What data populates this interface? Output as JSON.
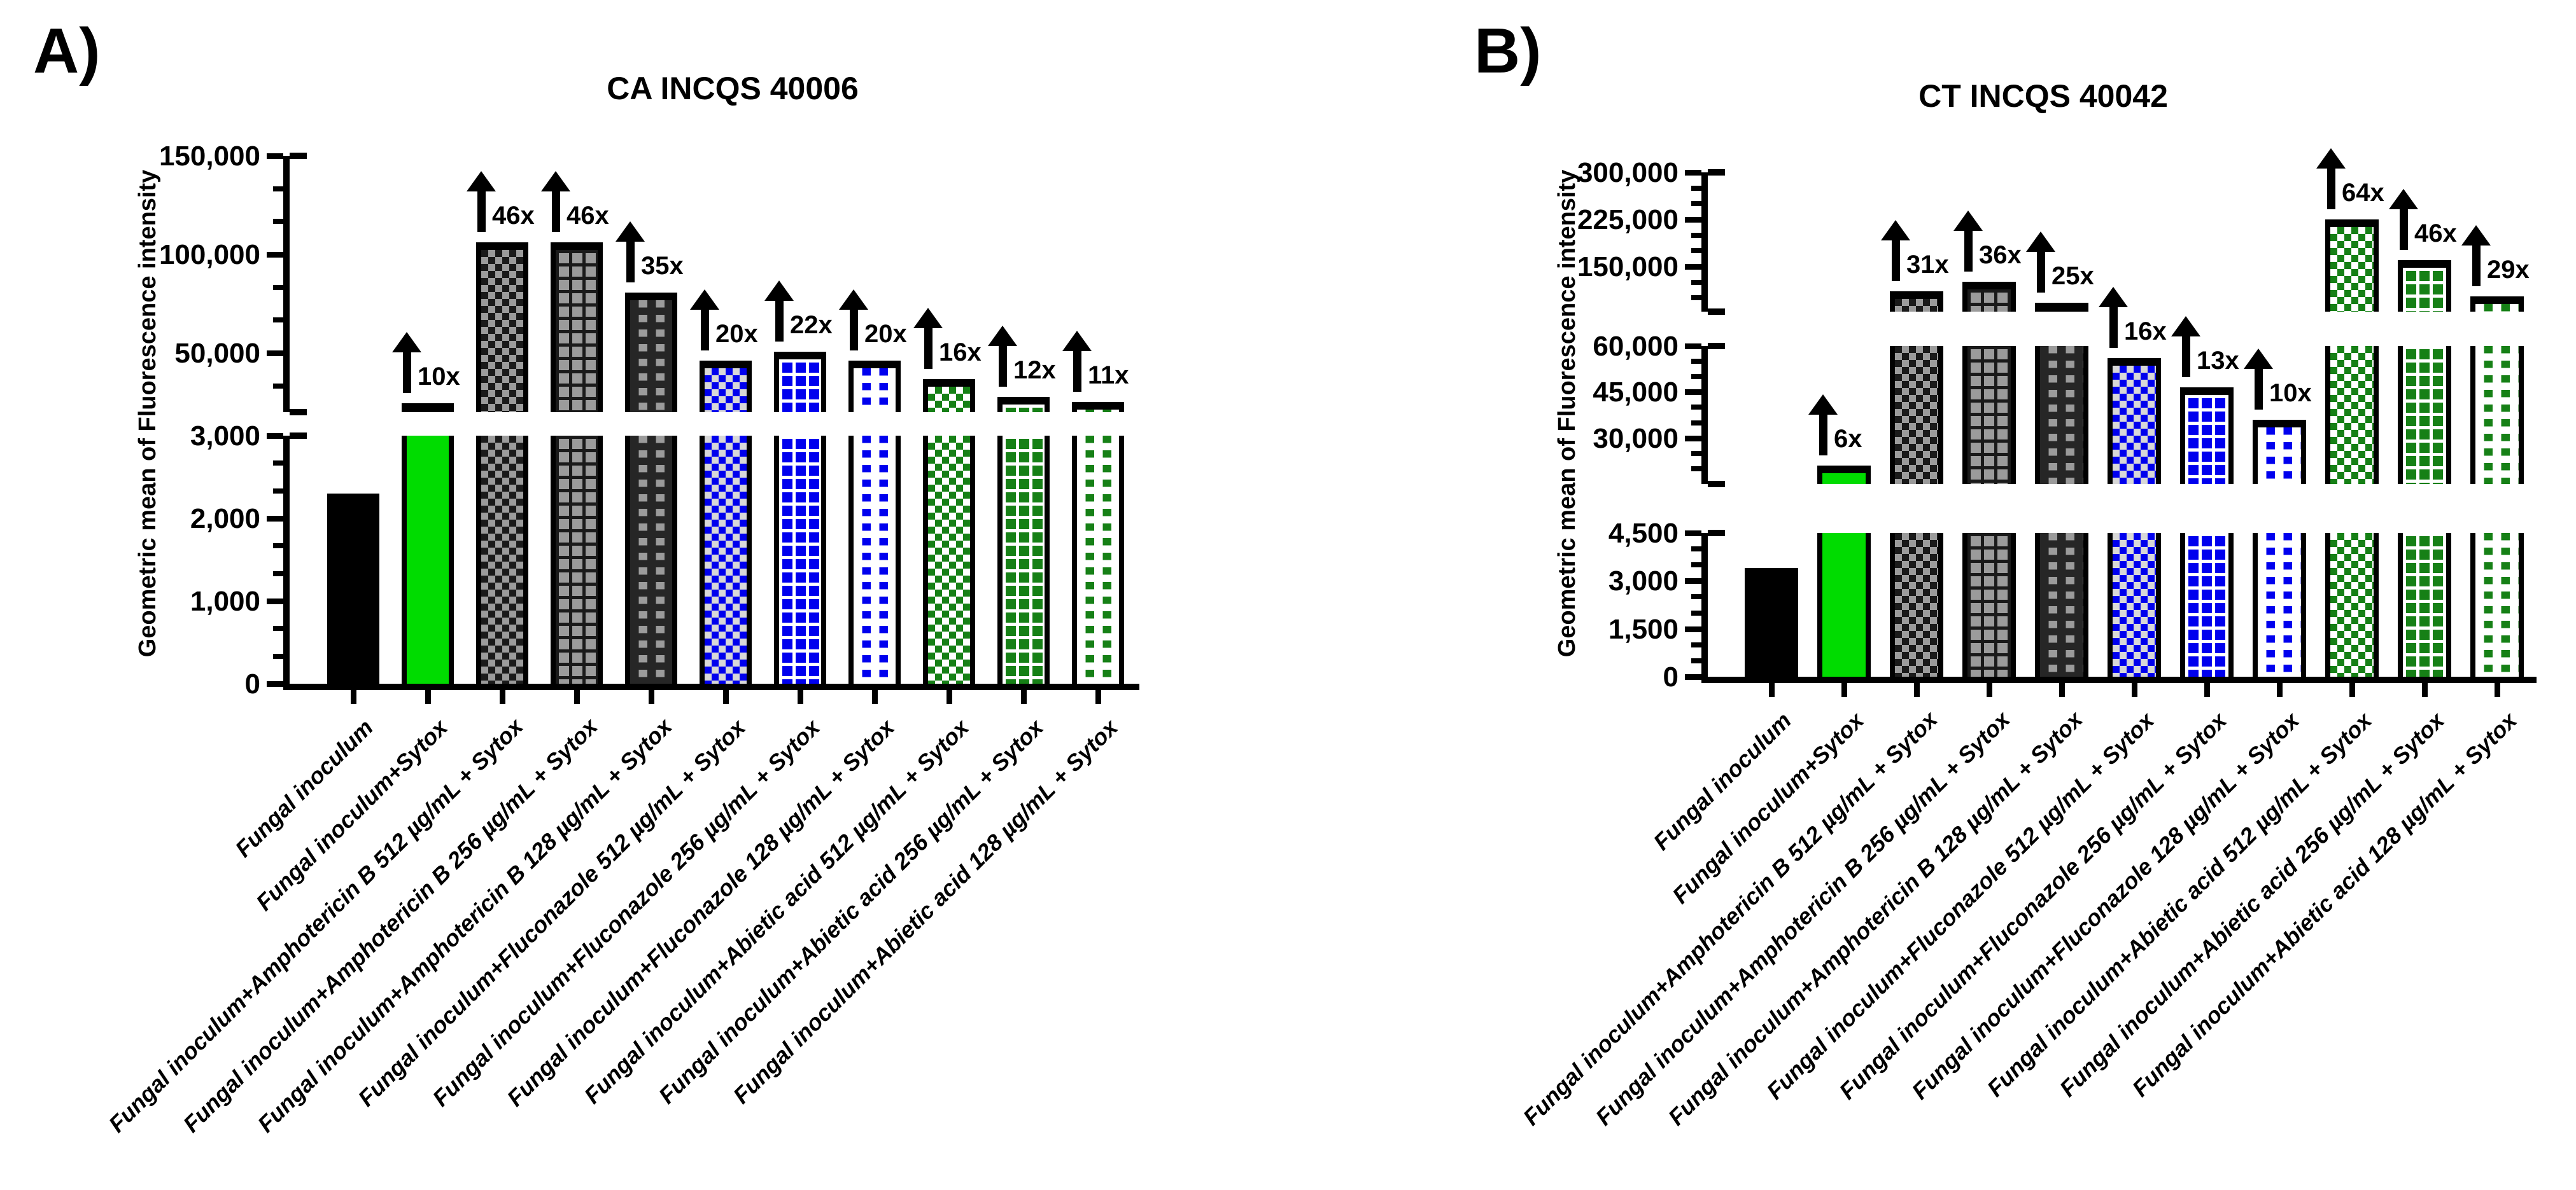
{
  "figure": {
    "background": "#FFFFFF",
    "text_color": "#000000"
  },
  "chart_data": [
    {
      "type": "bar",
      "panel_letter": "A)",
      "title": "CA INCQS 40006",
      "ylabel": "Geometric mean of Fluorescence intensity",
      "xlabel": "",
      "grid": false,
      "legend": "none",
      "categories": [
        "Fungal inoculum",
        "Fungal inoculum+Sytox",
        "Fungal inoculum+Amphotericin B 512 µg/mL + Sytox",
        "Fungal inoculum+Amphotericin B 256 µg/mL + Sytox",
        "Fungal inoculum+Amphotericin B 128 µg/mL + Sytox",
        "Fungal inoculum+Fluconazole 512 µg/mL + Sytox",
        "Fungal inoculum+Fluconazole 256 µg/mL + Sytox",
        "Fungal inoculum+Fluconazole 128 µg/mL + Sytox",
        "Fungal inoculum+Abietic acid 512 µg/mL + Sytox",
        "Fungal inoculum+Abietic acid 256 µg/mL + Sytox",
        "Fungal inoculum+Abietic acid 128 µg/mL + Sytox"
      ],
      "values": [
        2300,
        23000,
        106000,
        106000,
        80500,
        46000,
        50600,
        46000,
        36800,
        27600,
        25300
      ],
      "fold_labels": [
        "",
        "10x",
        "46x",
        "46x",
        "35x",
        "20x",
        "22x",
        "20x",
        "16x",
        "12x",
        "11x"
      ],
      "axis_segments": [
        {
          "range": [
            0,
            3000
          ],
          "major_ticks": [
            0,
            1000,
            2000,
            3000
          ],
          "tick_labels": [
            "0",
            "1,000",
            "2,000",
            "3,000"
          ]
        },
        {
          "range": [
            20000,
            150000
          ],
          "major_ticks": [
            50000,
            100000,
            150000
          ],
          "tick_labels": [
            "50,000",
            "100,000",
            "150,000"
          ]
        }
      ],
      "bar_styles": [
        {
          "name": "solid-black",
          "pattern": "solid",
          "fg": "#000000",
          "bg": "#000000"
        },
        {
          "name": "solid-green",
          "pattern": "solid",
          "fg": "#00DC00",
          "bg": "#00DC00"
        },
        {
          "name": "gray-checker",
          "pattern": "checker",
          "fg": "#9B9B9B",
          "bg": "#1A1A1A"
        },
        {
          "name": "gray-grid",
          "pattern": "grid",
          "fg": "#9B9B9B",
          "bg": "#1A1A1A"
        },
        {
          "name": "gray-dots",
          "pattern": "dots",
          "fg": "#9B9B9B",
          "bg": "#262626"
        },
        {
          "name": "blue-checker",
          "pattern": "checker",
          "fg": "#0000EE",
          "bg": "#D8D8D8"
        },
        {
          "name": "blue-grid",
          "pattern": "grid",
          "fg": "#0000EE",
          "bg": "#FFFFFF"
        },
        {
          "name": "blue-dots",
          "pattern": "dots",
          "fg": "#0000EE",
          "bg": "#FFFFFF"
        },
        {
          "name": "green-checker",
          "pattern": "checker",
          "fg": "#168016",
          "bg": "#FFFFFF"
        },
        {
          "name": "green-grid",
          "pattern": "grid",
          "fg": "#168016",
          "bg": "#FFFFFF"
        },
        {
          "name": "green-dots",
          "pattern": "dots",
          "fg": "#168016",
          "bg": "#FFFFFF"
        }
      ]
    },
    {
      "type": "bar",
      "panel_letter": "B)",
      "title": "CT INCQS 40042",
      "ylabel": "Geometric mean of Fluorescence intensity",
      "xlabel": "",
      "grid": false,
      "legend": "none",
      "categories": [
        "Fungal inoculum",
        "Fungal inoculum+Sytox",
        "Fungal inoculum+Amphotericin B 512 µg/mL + Sytox",
        "Fungal inoculum+Amphotericin B 256 µg/mL + Sytox",
        "Fungal inoculum+Amphotericin B 128 µg/mL + Sytox",
        "Fungal inoculum+Fluconazole 512 µg/mL + Sytox",
        "Fungal inoculum+Fluconazole 256 µg/mL + Sytox",
        "Fungal inoculum+Fluconazole 128 µg/mL + Sytox",
        "Fungal inoculum+Abietic acid 512 µg/mL + Sytox",
        "Fungal inoculum+Abietic acid 256 µg/mL + Sytox",
        "Fungal inoculum+Abietic acid 128 µg/mL + Sytox"
      ],
      "values": [
        3400,
        21000,
        110000,
        126000,
        88000,
        56000,
        46500,
        36000,
        225000,
        160000,
        102000
      ],
      "fold_labels": [
        "",
        "6x",
        "31x",
        "36x",
        "25x",
        "16x",
        "13x",
        "10x",
        "64x",
        "46x",
        "29x"
      ],
      "axis_segments": [
        {
          "range": [
            0,
            4500
          ],
          "major_ticks": [
            0,
            1500,
            3000,
            4500
          ],
          "tick_labels": [
            "0",
            "1,500",
            "3,000",
            "4,500"
          ]
        },
        {
          "range": [
            15000,
            60000
          ],
          "major_ticks": [
            30000,
            45000,
            60000
          ],
          "tick_labels": [
            "30,000",
            "45,000",
            "60,000"
          ]
        },
        {
          "range": [
            78000,
            300000
          ],
          "major_ticks": [
            150000,
            225000,
            300000
          ],
          "tick_labels": [
            "150,000",
            "225,000",
            "300,000"
          ]
        }
      ],
      "bar_styles": [
        {
          "name": "solid-black",
          "pattern": "solid",
          "fg": "#000000",
          "bg": "#000000"
        },
        {
          "name": "solid-green",
          "pattern": "solid",
          "fg": "#00DC00",
          "bg": "#00DC00"
        },
        {
          "name": "gray-checker",
          "pattern": "checker",
          "fg": "#9B9B9B",
          "bg": "#1A1A1A"
        },
        {
          "name": "gray-grid",
          "pattern": "grid",
          "fg": "#9B9B9B",
          "bg": "#1A1A1A"
        },
        {
          "name": "gray-dots",
          "pattern": "dots",
          "fg": "#9B9B9B",
          "bg": "#262626"
        },
        {
          "name": "blue-checker",
          "pattern": "checker",
          "fg": "#0000EE",
          "bg": "#D8D8D8"
        },
        {
          "name": "blue-grid",
          "pattern": "grid",
          "fg": "#0000EE",
          "bg": "#FFFFFF"
        },
        {
          "name": "blue-dots",
          "pattern": "dots",
          "fg": "#0000EE",
          "bg": "#FFFFFF"
        },
        {
          "name": "green-checker",
          "pattern": "checker",
          "fg": "#168016",
          "bg": "#FFFFFF"
        },
        {
          "name": "green-grid",
          "pattern": "grid",
          "fg": "#168016",
          "bg": "#FFFFFF"
        },
        {
          "name": "green-dots",
          "pattern": "dots",
          "fg": "#168016",
          "bg": "#FFFFFF"
        }
      ]
    }
  ]
}
